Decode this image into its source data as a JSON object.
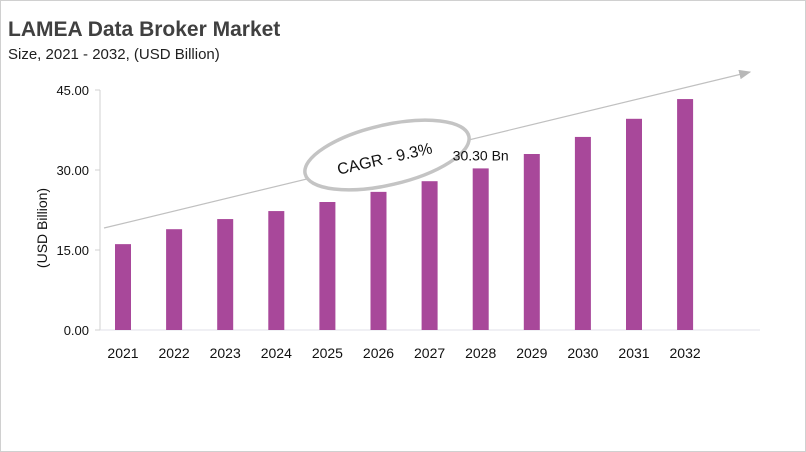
{
  "chart_data": {
    "type": "bar",
    "title": "LAMEA Data Broker Market",
    "subtitle": "Size, 2021 - 2032, (USD Billion)",
    "ylabel": "(USD Billion)",
    "xlabel": "",
    "categories": [
      "2021",
      "2022",
      "2023",
      "2024",
      "2025",
      "2026",
      "2027",
      "2028",
      "2029",
      "2030",
      "2031",
      "2032"
    ],
    "values": [
      16.1,
      18.9,
      20.8,
      22.3,
      24.0,
      25.9,
      27.9,
      30.3,
      33.0,
      36.2,
      39.6,
      43.3
    ],
    "ylim": [
      0,
      45
    ],
    "yticks": [
      "0.00",
      "15.00",
      "30.00",
      "45.00"
    ],
    "ytick_values": [
      0,
      15,
      30,
      45
    ],
    "grid": false,
    "bar_color": "#a8489a",
    "annotations": {
      "data_label": {
        "category": "2028",
        "text": "30.30 Bn"
      },
      "cagr": "CAGR - 9.3%"
    }
  }
}
